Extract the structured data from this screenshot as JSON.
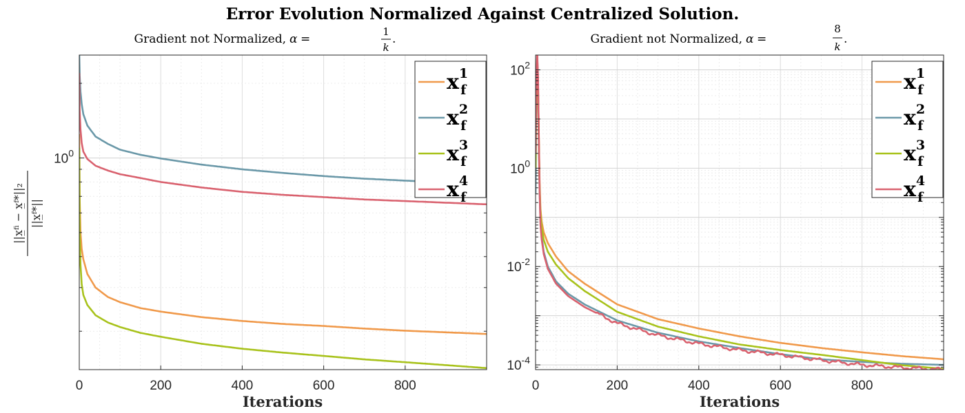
{
  "figure": {
    "title": "Error Evolution Normalized Against Centralized Solution."
  },
  "colors": {
    "x1": "#f0994a",
    "x2": "#6a98a8",
    "x3": "#a8c21b",
    "x4": "#d9616e"
  },
  "chart_data": [
    {
      "type": "line",
      "title": "Gradient not Normalized, α = 1/k.",
      "subtitle_prefix": "Gradient not Normalized, ",
      "alpha_symbol": "α",
      "alpha_numerator": "1",
      "alpha_denominator": "k",
      "xlabel": "Iterations",
      "ylabel": "||x_f^i − x_f^*||_2 / ||x_f^*||",
      "xlim": [
        0,
        1000
      ],
      "ylim": [
        0.14,
        2.6
      ],
      "yscale": "log",
      "xticks": [
        "0",
        "200",
        "400",
        "600",
        "800"
      ],
      "yticks": [
        "10^0"
      ],
      "grid": true,
      "legend": "top-right",
      "series": [
        {
          "name": "x_f^1",
          "x": [
            0,
            1,
            3,
            6,
            10,
            20,
            40,
            70,
            100,
            150,
            200,
            300,
            400,
            500,
            600,
            700,
            800,
            900,
            1000
          ],
          "values": [
            1.25,
            0.68,
            0.5,
            0.43,
            0.39,
            0.34,
            0.3,
            0.275,
            0.262,
            0.248,
            0.24,
            0.228,
            0.22,
            0.214,
            0.21,
            0.205,
            0.201,
            0.198,
            0.195
          ]
        },
        {
          "name": "x_f^2",
          "x": [
            0,
            1,
            3,
            6,
            10,
            20,
            40,
            70,
            100,
            150,
            200,
            300,
            400,
            500,
            600,
            700,
            800,
            900,
            1000
          ],
          "values": [
            2.6,
            2.15,
            1.85,
            1.65,
            1.5,
            1.35,
            1.22,
            1.14,
            1.08,
            1.03,
            0.995,
            0.94,
            0.9,
            0.87,
            0.845,
            0.825,
            0.81,
            0.797,
            0.785
          ]
        },
        {
          "name": "x_f^3",
          "x": [
            0,
            1,
            3,
            6,
            10,
            20,
            40,
            70,
            100,
            150,
            200,
            300,
            400,
            500,
            600,
            700,
            800,
            900,
            1000
          ],
          "values": [
            1.1,
            0.5,
            0.37,
            0.31,
            0.28,
            0.255,
            0.232,
            0.217,
            0.208,
            0.197,
            0.19,
            0.178,
            0.17,
            0.164,
            0.159,
            0.154,
            0.15,
            0.146,
            0.142
          ]
        },
        {
          "name": "x_f^4",
          "x": [
            0,
            1,
            3,
            6,
            10,
            20,
            40,
            70,
            100,
            150,
            200,
            300,
            400,
            500,
            600,
            700,
            800,
            900,
            1000
          ],
          "values": [
            2.2,
            1.55,
            1.3,
            1.15,
            1.06,
            0.99,
            0.93,
            0.89,
            0.86,
            0.83,
            0.8,
            0.76,
            0.73,
            0.71,
            0.695,
            0.68,
            0.67,
            0.66,
            0.65
          ]
        }
      ]
    },
    {
      "type": "line",
      "title": "Gradient not Normalized, α = 8/k.",
      "subtitle_prefix": "Gradient not Normalized, ",
      "alpha_symbol": "α",
      "alpha_numerator": "8",
      "alpha_denominator": "k",
      "xlabel": "Iterations",
      "ylabel": "",
      "xlim": [
        0,
        1000
      ],
      "ylim": [
        8e-05,
        200
      ],
      "yscale": "log",
      "xticks": [
        "0",
        "200",
        "400",
        "600",
        "800"
      ],
      "yticks": [
        "10^2",
        "10^0",
        "10^-2",
        "10^-4"
      ],
      "grid": true,
      "legend": "top-right",
      "series": [
        {
          "name": "x_f^1",
          "x": [
            0,
            2,
            4,
            6,
            8,
            10,
            12,
            15,
            20,
            30,
            50,
            80,
            120,
            200,
            300,
            400,
            500,
            600,
            700,
            800,
            900,
            1000
          ],
          "values": [
            1.2,
            30,
            200,
            60,
            5,
            0.5,
            0.15,
            0.08,
            0.05,
            0.03,
            0.016,
            0.008,
            0.0045,
            0.0017,
            0.00085,
            0.00055,
            0.00038,
            0.00028,
            0.00022,
            0.00018,
            0.00015,
            0.00013
          ]
        },
        {
          "name": "x_f^2",
          "x": [
            0,
            2,
            4,
            6,
            8,
            10,
            12,
            15,
            20,
            30,
            50,
            80,
            120,
            200,
            300,
            400,
            500,
            600,
            700,
            800,
            900,
            1000
          ],
          "values": [
            0.3,
            50,
            150,
            40,
            3,
            0.3,
            0.08,
            0.04,
            0.02,
            0.01,
            0.005,
            0.0028,
            0.0017,
            0.0008,
            0.00045,
            0.0003,
            0.00022,
            0.000165,
            0.00013,
            0.000115,
            0.000105,
            0.0001
          ]
        },
        {
          "name": "x_f^3",
          "x": [
            0,
            2,
            4,
            6,
            8,
            10,
            12,
            15,
            20,
            30,
            50,
            80,
            120,
            200,
            300,
            400,
            500,
            600,
            700,
            800,
            900,
            1000
          ],
          "values": [
            1.0,
            40,
            180,
            50,
            4,
            0.4,
            0.12,
            0.06,
            0.035,
            0.02,
            0.011,
            0.0058,
            0.0032,
            0.0012,
            0.0006,
            0.00038,
            0.00026,
            0.0002,
            0.00016,
            0.000125,
            9.8e-05,
            8.3e-05
          ]
        },
        {
          "name": "x_f^4",
          "x": [
            0,
            2,
            4,
            6,
            8,
            10,
            12,
            15,
            20,
            30,
            50,
            80,
            120,
            200,
            300,
            400,
            500,
            600,
            700,
            800,
            900,
            1000
          ],
          "values": [
            2.0,
            60,
            220,
            70,
            5,
            0.35,
            0.07,
            0.035,
            0.018,
            0.009,
            0.0045,
            0.0025,
            0.0015,
            0.0007,
            0.0004,
            0.00027,
            0.0002,
            0.00016,
            0.000125,
            0.0001,
            8.8e-05,
            8e-05
          ]
        }
      ]
    }
  ]
}
